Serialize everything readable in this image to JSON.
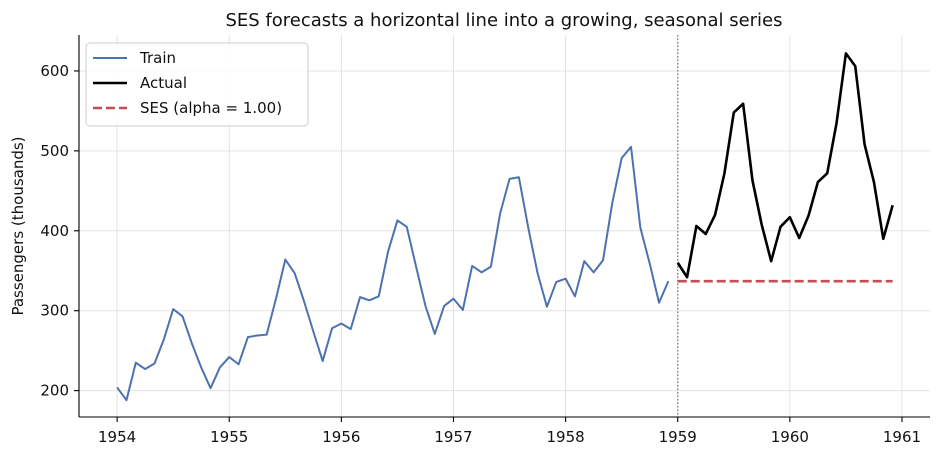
{
  "chart_data": {
    "type": "line",
    "title": "SES forecasts a horizontal line into a growing, seasonal series",
    "xlabel": "",
    "ylabel": "Passengers (thousands)",
    "xlim": [
      1953.66,
      1961.25
    ],
    "ylim": [
      167,
      645
    ],
    "x_ticks": [
      1954,
      1955,
      1956,
      1957,
      1958,
      1959,
      1960,
      1961
    ],
    "x_tick_labels": [
      "1954",
      "1955",
      "1956",
      "1957",
      "1958",
      "1959",
      "1960",
      "1961"
    ],
    "y_ticks": [
      200,
      300,
      400,
      500,
      600
    ],
    "y_tick_labels": [
      "200",
      "300",
      "400",
      "500",
      "600"
    ],
    "grid": true,
    "legend_position": "top-left",
    "split_marker": {
      "x": 1959.0,
      "style": "dotted",
      "color": "#808080"
    },
    "series": [
      {
        "name": "Train",
        "color": "#4c72b0",
        "style": "solid",
        "x_start": 1954.0,
        "x_step_months": 1,
        "values": [
          204,
          188,
          235,
          227,
          234,
          264,
          302,
          293,
          259,
          229,
          203,
          229,
          242,
          233,
          267,
          269,
          270,
          315,
          364,
          347,
          312,
          274,
          237,
          278,
          284,
          277,
          317,
          313,
          318,
          374,
          413,
          405,
          355,
          306,
          271,
          306,
          315,
          301,
          356,
          348,
          355,
          422,
          465,
          467,
          404,
          347,
          305,
          336,
          340,
          318,
          362,
          348,
          363,
          435,
          491,
          505,
          404,
          359,
          310,
          337
        ]
      },
      {
        "name": "Actual",
        "color": "#000000",
        "style": "solid",
        "x_start": 1959.0,
        "x_step_months": 1,
        "values": [
          360,
          342,
          406,
          396,
          420,
          472,
          548,
          559,
          463,
          407,
          362,
          405,
          417,
          391,
          419,
          461,
          472,
          535,
          622,
          606,
          508,
          461,
          390,
          432
        ]
      },
      {
        "name": "SES (alpha = 1.00)",
        "color": "#c44e52",
        "style": "dashed",
        "x_start": 1959.0,
        "x_step_months": 1,
        "values": [
          337,
          337,
          337,
          337,
          337,
          337,
          337,
          337,
          337,
          337,
          337,
          337,
          337,
          337,
          337,
          337,
          337,
          337,
          337,
          337,
          337,
          337,
          337,
          337
        ]
      }
    ]
  }
}
